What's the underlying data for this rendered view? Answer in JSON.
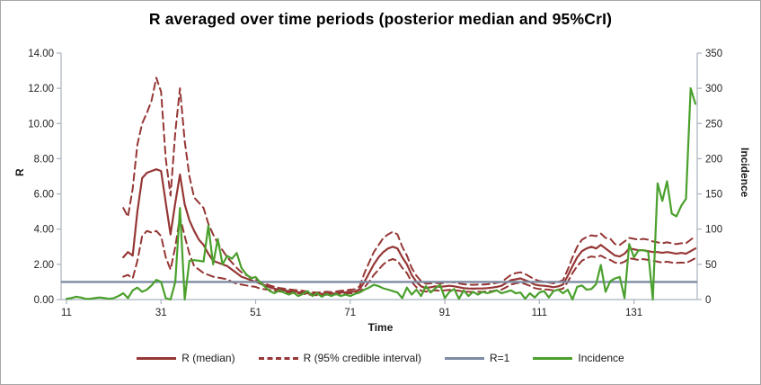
{
  "title": "R averaged over time periods (posterior median and 95%CrI)",
  "chart_data": {
    "type": "line",
    "title": "R averaged over time periods (posterior median and 95%CrI)",
    "xlabel": "Time",
    "ylabel_left": "R",
    "ylabel_right": "Incidence",
    "grid": false,
    "legend_position": "bottom",
    "x_start": 11,
    "x_end": 144,
    "x_tick_labels": [
      "11",
      "31",
      "51",
      "71",
      "91",
      "111",
      "131"
    ],
    "x_tick_values": [
      11,
      31,
      51,
      71,
      91,
      111,
      131
    ],
    "y_left": {
      "min": 0,
      "max": 14,
      "tick_labels": [
        "0.00",
        "2.00",
        "4.00",
        "6.00",
        "8.00",
        "10.00",
        "12.00",
        "14.00"
      ]
    },
    "y_right": {
      "min": 0,
      "max": 350,
      "tick_labels": [
        "0",
        "50",
        "100",
        "150",
        "200",
        "250",
        "300",
        "350"
      ]
    },
    "axis_color": "#a9b2bf",
    "text_color": "#1f1f1f",
    "series": [
      {
        "name": "R (median)",
        "axis": "left",
        "style": "solid",
        "color": "#953735",
        "values": [
          null,
          null,
          null,
          null,
          null,
          null,
          null,
          null,
          null,
          null,
          null,
          null,
          2.4,
          2.7,
          2.5,
          5.0,
          6.9,
          7.2,
          7.3,
          7.4,
          7.3,
          5.5,
          3.7,
          5.5,
          7.1,
          5.4,
          4.5,
          3.9,
          3.4,
          3.1,
          2.6,
          2.2,
          2.1,
          2.0,
          1.9,
          1.7,
          1.5,
          1.3,
          1.2,
          1.1,
          1.0,
          0.9,
          0.8,
          0.7,
          0.62,
          0.56,
          0.52,
          0.48,
          0.45,
          0.42,
          0.4,
          0.35,
          0.32,
          0.3,
          0.32,
          0.35,
          0.32,
          0.36,
          0.4,
          0.42,
          0.45,
          0.45,
          0.6,
          1.0,
          1.5,
          2.0,
          2.4,
          2.7,
          2.9,
          3.0,
          2.9,
          2.4,
          2.0,
          1.4,
          1.0,
          0.75,
          0.65,
          0.7,
          0.75,
          0.72,
          0.75,
          0.78,
          0.75,
          0.7,
          0.65,
          0.63,
          0.62,
          0.63,
          0.63,
          0.65,
          0.68,
          0.72,
          0.78,
          0.95,
          1.1,
          1.15,
          1.2,
          1.1,
          1.0,
          0.85,
          0.8,
          0.78,
          0.75,
          0.7,
          0.75,
          0.85,
          1.35,
          1.9,
          2.4,
          2.75,
          2.9,
          3.0,
          2.9,
          3.1,
          2.9,
          2.7,
          2.5,
          2.45,
          2.6,
          2.9,
          2.85,
          2.8,
          2.8,
          2.75,
          2.7,
          2.7,
          2.65,
          2.7,
          2.65,
          2.6,
          2.65,
          2.6,
          2.75,
          2.9
        ]
      },
      {
        "name": "R (95% credible interval)",
        "axis": "left",
        "style": "dashed",
        "color": "#953735",
        "values_upper": [
          null,
          null,
          null,
          null,
          null,
          null,
          null,
          null,
          null,
          null,
          null,
          null,
          5.2,
          4.7,
          6.3,
          8.8,
          10.0,
          10.6,
          11.3,
          12.6,
          11.8,
          8.0,
          5.9,
          9.5,
          12.0,
          9.0,
          7.0,
          5.8,
          5.5,
          5.2,
          4.3,
          3.7,
          3.2,
          2.8,
          2.4,
          2.1,
          1.8,
          1.55,
          1.4,
          1.25,
          1.13,
          1.0,
          0.9,
          0.8,
          0.72,
          0.66,
          0.62,
          0.58,
          0.55,
          0.52,
          0.5,
          0.45,
          0.42,
          0.4,
          0.42,
          0.45,
          0.42,
          0.46,
          0.5,
          0.52,
          0.56,
          0.58,
          0.75,
          1.5,
          2.1,
          2.7,
          3.1,
          3.5,
          3.7,
          3.85,
          3.7,
          3.0,
          2.5,
          1.8,
          1.35,
          1.05,
          0.9,
          0.92,
          0.95,
          0.92,
          0.95,
          1.0,
          0.97,
          0.92,
          0.87,
          0.85,
          0.84,
          0.85,
          0.85,
          0.87,
          0.9,
          0.95,
          1.0,
          1.2,
          1.4,
          1.5,
          1.55,
          1.45,
          1.3,
          1.15,
          1.05,
          1.0,
          0.97,
          0.92,
          1.0,
          1.1,
          1.7,
          2.4,
          3.0,
          3.4,
          3.55,
          3.65,
          3.6,
          3.75,
          3.5,
          3.45,
          3.15,
          3.1,
          3.3,
          3.5,
          3.45,
          3.4,
          3.45,
          3.4,
          3.3,
          3.25,
          3.2,
          3.25,
          3.2,
          3.15,
          3.2,
          3.2,
          3.4,
          3.6
        ],
        "values_lower": [
          null,
          null,
          null,
          null,
          null,
          null,
          null,
          null,
          null,
          null,
          null,
          null,
          1.3,
          1.4,
          1.2,
          2.2,
          3.6,
          3.9,
          3.8,
          3.9,
          3.6,
          2.4,
          1.7,
          3.0,
          4.7,
          3.6,
          2.6,
          1.9,
          1.7,
          1.5,
          1.4,
          1.3,
          1.25,
          1.2,
          1.15,
          1.0,
          0.9,
          0.85,
          0.8,
          0.75,
          0.72,
          0.62,
          0.58,
          0.55,
          0.5,
          0.46,
          0.43,
          0.4,
          0.37,
          0.35,
          0.33,
          0.28,
          0.26,
          0.24,
          0.26,
          0.28,
          0.26,
          0.29,
          0.32,
          0.34,
          0.36,
          0.36,
          0.45,
          0.7,
          1.0,
          1.4,
          1.7,
          2.0,
          2.2,
          2.3,
          2.2,
          1.8,
          1.5,
          1.0,
          0.7,
          0.5,
          0.45,
          0.48,
          0.52,
          0.5,
          0.52,
          0.55,
          0.53,
          0.5,
          0.46,
          0.44,
          0.43,
          0.44,
          0.44,
          0.46,
          0.48,
          0.52,
          0.56,
          0.7,
          0.85,
          0.92,
          0.97,
          0.88,
          0.78,
          0.65,
          0.6,
          0.58,
          0.56,
          0.52,
          0.56,
          0.62,
          1.0,
          1.5,
          1.9,
          2.2,
          2.35,
          2.45,
          2.4,
          2.5,
          2.35,
          2.25,
          2.1,
          2.05,
          2.15,
          2.35,
          2.3,
          2.25,
          2.3,
          2.25,
          2.2,
          2.15,
          2.1,
          2.15,
          2.1,
          2.08,
          2.1,
          2.08,
          2.2,
          2.35
        ]
      },
      {
        "name": "R=1",
        "axis": "left",
        "style": "solid",
        "color": "#7d8ca3",
        "constant": 1
      },
      {
        "name": "Incidence",
        "axis": "right",
        "style": "solid",
        "color": "#4aa02c",
        "values": [
          1,
          2,
          4,
          3,
          1,
          1,
          2,
          3,
          2,
          1,
          2,
          5,
          9,
          2,
          13,
          17,
          11,
          14,
          20,
          28,
          25,
          2,
          0,
          25,
          130,
          0,
          55,
          56,
          55,
          54,
          105,
          50,
          86,
          50,
          62,
          58,
          66,
          45,
          36,
          30,
          32,
          24,
          18,
          12,
          9,
          13,
          10,
          7,
          10,
          5,
          8,
          12,
          5,
          9,
          4,
          8,
          5,
          8,
          5,
          7,
          5,
          8,
          10,
          14,
          17,
          21,
          19,
          16,
          14,
          12,
          10,
          2,
          17,
          7,
          14,
          5,
          19,
          10,
          16,
          21,
          2,
          11,
          15,
          1,
          13,
          5,
          11,
          7,
          11,
          9,
          11,
          13,
          9,
          11,
          13,
          9,
          10,
          1,
          9,
          3,
          10,
          12,
          3,
          12,
          14,
          9,
          14,
          0,
          18,
          20,
          14,
          15,
          22,
          49,
          11,
          26,
          30,
          32,
          2,
          79,
          60,
          70,
          70,
          68,
          0,
          165,
          140,
          168,
          122,
          118,
          133,
          143,
          300,
          278
        ]
      }
    ]
  },
  "legend": {
    "items": [
      {
        "label": "R (median)"
      },
      {
        "label": "R (95% credible interval)"
      },
      {
        "label": "R=1"
      },
      {
        "label": "Incidence"
      }
    ]
  }
}
